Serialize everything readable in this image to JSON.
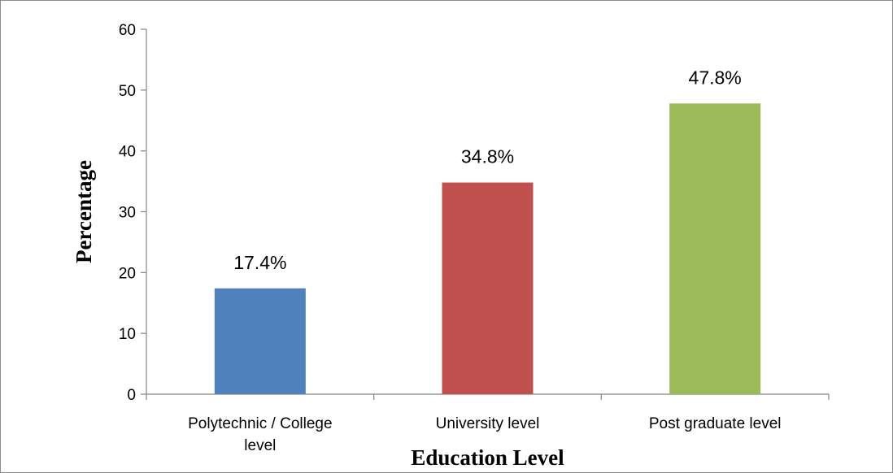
{
  "chart_data": {
    "type": "bar",
    "categories": [
      "Polytechnic / College level",
      "University level",
      "Post graduate level"
    ],
    "category_lines": [
      [
        "Polytechnic / College",
        "level"
      ],
      [
        "University level"
      ],
      [
        "Post graduate level"
      ]
    ],
    "values": [
      17.4,
      34.8,
      47.8
    ],
    "data_labels": [
      "17.4%",
      "34.8%",
      "47.8%"
    ],
    "colors": [
      "#4f81bd",
      "#c0504d",
      "#9bbb59"
    ],
    "xlabel": "Education Level",
    "ylabel": "Percentage",
    "ylim": [
      0,
      60
    ],
    "yticks": [
      0,
      10,
      20,
      30,
      40,
      50,
      60
    ],
    "grid": false,
    "legend": "none"
  }
}
